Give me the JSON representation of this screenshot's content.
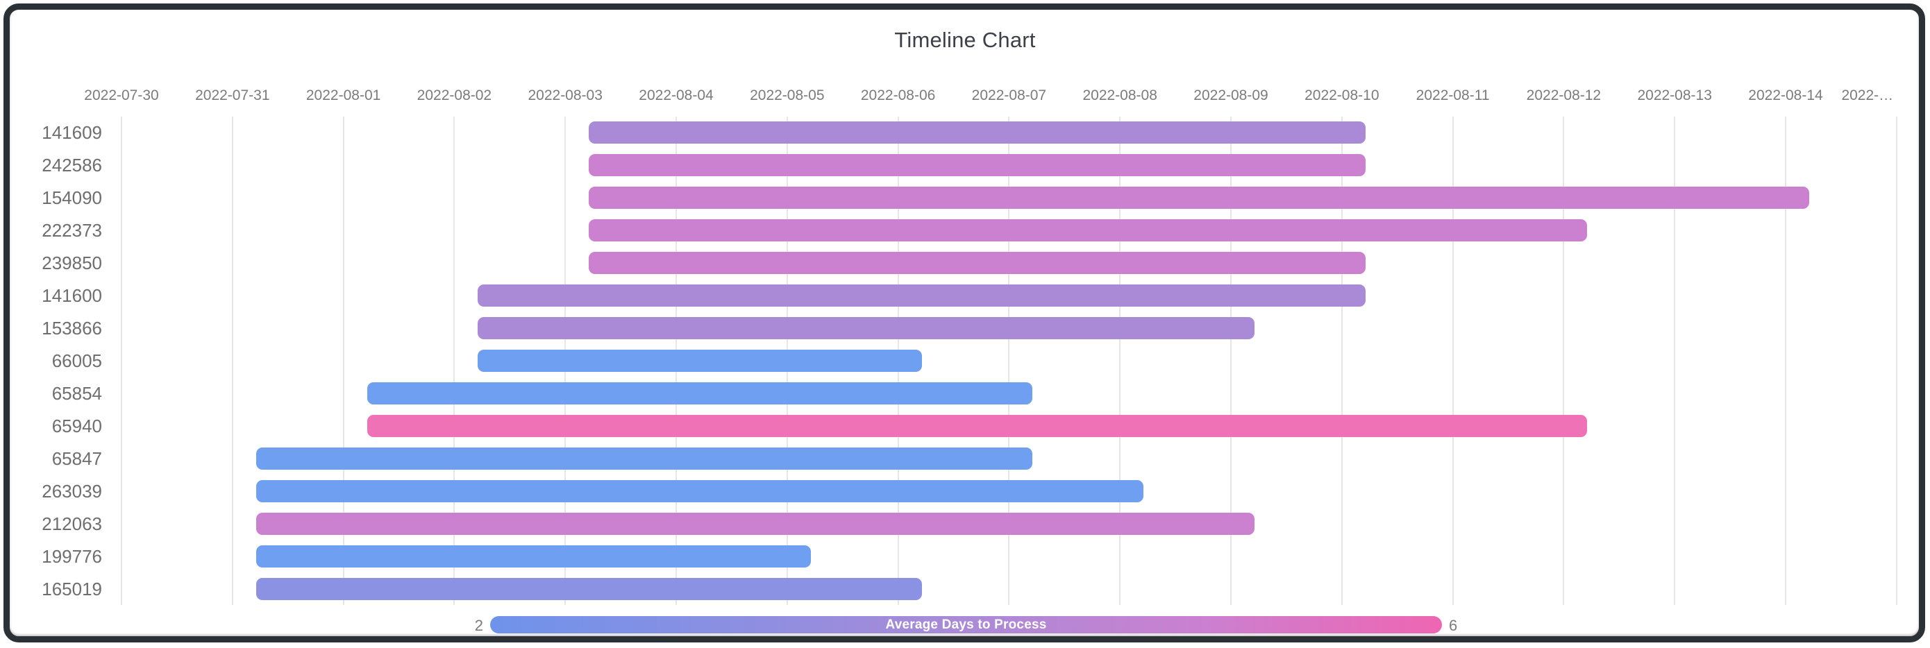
{
  "page": {
    "background": "#ffffff",
    "frame_color": "#2b3134"
  },
  "chart_data": {
    "type": "timeline",
    "title": "Timeline Chart",
    "x_axis": {
      "grid": true,
      "tick_labels": [
        "2022-07-30",
        "2022-07-31",
        "2022-08-01",
        "2022-08-02",
        "2022-08-03",
        "2022-08-04",
        "2022-08-05",
        "2022-08-06",
        "2022-08-07",
        "2022-08-08",
        "2022-08-09",
        "2022-08-10",
        "2022-08-11",
        "2022-08-12",
        "2022-08-13",
        "2022-08-14",
        "2022-…"
      ]
    },
    "rows": [
      {
        "id": "141609",
        "start": "2022-08-03",
        "end": "2022-08-10",
        "duration_days": 7,
        "color": "#aa8ad6"
      },
      {
        "id": "242586",
        "start": "2022-08-03",
        "end": "2022-08-10",
        "duration_days": 7,
        "color": "#cb80d0"
      },
      {
        "id": "154090",
        "start": "2022-08-03",
        "end": "2022-08-14",
        "duration_days": 11,
        "color": "#cb80d0"
      },
      {
        "id": "222373",
        "start": "2022-08-03",
        "end": "2022-08-12",
        "duration_days": 9,
        "color": "#cb80d0"
      },
      {
        "id": "239850",
        "start": "2022-08-03",
        "end": "2022-08-10",
        "duration_days": 7,
        "color": "#cb80d0"
      },
      {
        "id": "141600",
        "start": "2022-08-02",
        "end": "2022-08-10",
        "duration_days": 8,
        "color": "#aa8ad6"
      },
      {
        "id": "153866",
        "start": "2022-08-02",
        "end": "2022-08-09",
        "duration_days": 7,
        "color": "#aa8ad6"
      },
      {
        "id": "66005",
        "start": "2022-08-02",
        "end": "2022-08-06",
        "duration_days": 4,
        "color": "#6f9ff0"
      },
      {
        "id": "65854",
        "start": "2022-08-01",
        "end": "2022-08-07",
        "duration_days": 6,
        "color": "#6f9ff0"
      },
      {
        "id": "65940",
        "start": "2022-08-01",
        "end": "2022-08-12",
        "duration_days": 11,
        "color": "#ef72b6"
      },
      {
        "id": "65847",
        "start": "2022-07-31",
        "end": "2022-08-07",
        "duration_days": 7,
        "color": "#6f9ff0"
      },
      {
        "id": "263039",
        "start": "2022-07-31",
        "end": "2022-08-08",
        "duration_days": 8,
        "color": "#6f9ff0"
      },
      {
        "id": "212063",
        "start": "2022-07-31",
        "end": "2022-08-09",
        "duration_days": 9,
        "color": "#cb80d0"
      },
      {
        "id": "199776",
        "start": "2022-07-31",
        "end": "2022-08-05",
        "duration_days": 5,
        "color": "#6f9ff0"
      },
      {
        "id": "165019",
        "start": "2022-07-31",
        "end": "2022-08-06",
        "duration_days": 6,
        "color": "#8b92e4"
      }
    ],
    "legend": {
      "title": "Average Days to Process",
      "min_label": "2",
      "max_label": "6",
      "gradient": [
        "#6f93ea",
        "#8b8fe2",
        "#aa8ad6",
        "#cb80d0",
        "#ee66b2"
      ]
    }
  }
}
